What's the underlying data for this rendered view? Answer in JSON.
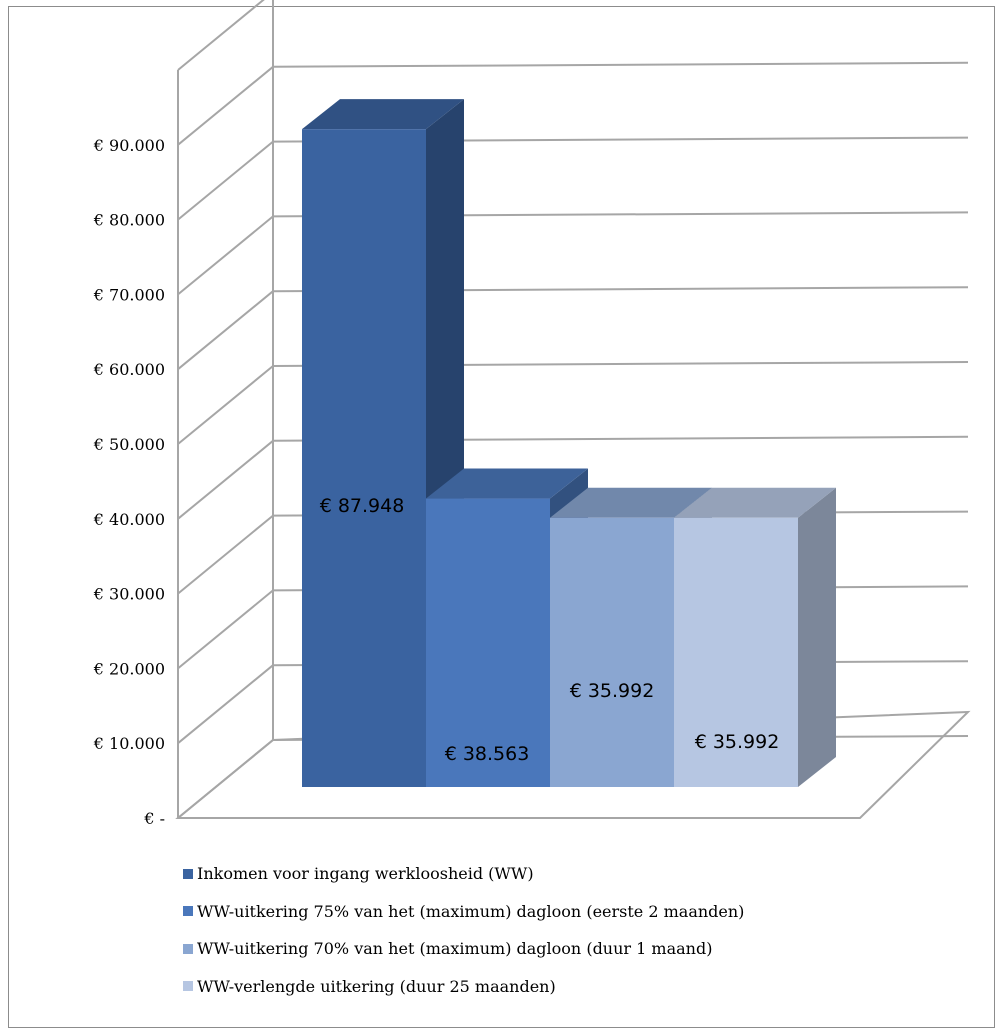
{
  "chart_data": {
    "type": "bar",
    "categories": [
      "Inkomen voor ingang werkloosheid (WW)",
      "WW-uitkering 75% van het (maximum) dagloon (eerste 2 maanden)",
      "WW-uitkering 70% van het (maximum) dagloon (duur 1 maand)",
      "WW-verlengde uitkering (duur 25 maanden)"
    ],
    "values": [
      87948,
      38563,
      35992,
      35992
    ],
    "data_labels": [
      "€ 87.948",
      "€ 38.563",
      "€ 35.992",
      "€ 35.992"
    ],
    "colors": [
      "#3a63a0",
      "#4a77bb",
      "#8aa6d1",
      "#b6c6e2"
    ],
    "ylim": [
      0,
      100000
    ],
    "y_tick_values": [
      0,
      10000,
      20000,
      30000,
      40000,
      50000,
      60000,
      70000,
      80000,
      90000
    ],
    "y_tick_labels": [
      "€ -",
      "€ 10.000",
      "€ 20.000",
      "€ 30.000",
      "€ 40.000",
      "€ 50.000",
      "€ 60.000",
      "€ 70.000",
      "€ 80.000",
      "€ 90.000"
    ],
    "style": "3d-column",
    "grid": true,
    "legend": "bottom"
  }
}
